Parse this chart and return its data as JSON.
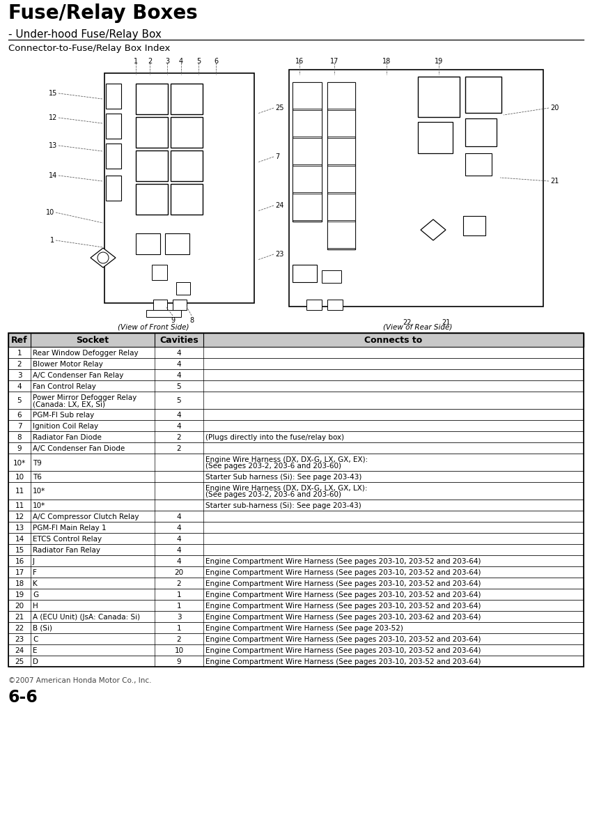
{
  "title": "Fuse/Relay Boxes",
  "subtitle": "Under-hood Fuse/Relay Box",
  "diagram_title": "Connector-to-Fuse/Relay Box Index",
  "front_label": "(View of Front Side)",
  "rear_label": "(View of Rear Side)",
  "copyright": "©2007 American Honda Motor Co., Inc.",
  "page_number": "6-6",
  "table_headers": [
    "Ref",
    "Socket",
    "Cavities",
    "Connects to"
  ],
  "table_rows": [
    [
      "1",
      "Rear Window Defogger Relay",
      "4",
      ""
    ],
    [
      "2",
      "Blower Motor Relay",
      "4",
      ""
    ],
    [
      "3",
      "A/C Condenser Fan Relay",
      "4",
      ""
    ],
    [
      "4",
      "Fan Control Relay",
      "5",
      ""
    ],
    [
      "5",
      "Power Mirror Defogger Relay\n(Canada: LX, EX, Si)",
      "5",
      ""
    ],
    [
      "6",
      "PGM-FI Sub relay",
      "4",
      ""
    ],
    [
      "7",
      "Ignition Coil Relay",
      "4",
      ""
    ],
    [
      "8",
      "Radiator Fan Diode",
      "2",
      "(Plugs directly into the fuse/relay box)"
    ],
    [
      "9",
      "A/C Condenser Fan Diode",
      "2",
      ""
    ],
    [
      "10*",
      "T9",
      "",
      "Engine Wire Harness (DX, DX-G, LX, GX, EX):\n(See pages 203-2, 203-6 and 203-60)"
    ],
    [
      "10",
      "T6",
      "",
      "Starter Sub harness (Si): See page 203-43)"
    ],
    [
      "11",
      "10*",
      "",
      "Engine Wire Harness (DX, DX-G, LX, GX, LX):\n(See pages 203-2, 203-6 and 203-60)"
    ],
    [
      "11",
      "10*",
      "",
      "Starter sub-harness (Si): See page 203-43)"
    ],
    [
      "12",
      "A/C Compressor Clutch Relay",
      "4",
      ""
    ],
    [
      "13",
      "PGM-FI Main Relay 1",
      "4",
      ""
    ],
    [
      "14",
      "ETCS Control Relay",
      "4",
      ""
    ],
    [
      "15",
      "Radiator Fan Relay",
      "4",
      ""
    ],
    [
      "16",
      "J",
      "4",
      "Engine Compartment Wire Harness (See pages 203-10, 203-52 and 203-64)"
    ],
    [
      "17",
      "F",
      "20",
      "Engine Compartment Wire Harness (See pages 203-10, 203-52 and 203-64)"
    ],
    [
      "18",
      "K",
      "2",
      "Engine Compartment Wire Harness (See pages 203-10, 203-52 and 203-64)"
    ],
    [
      "19",
      "G",
      "1",
      "Engine Compartment Wire Harness (See pages 203-10, 203-52 and 203-64)"
    ],
    [
      "20",
      "H",
      "1",
      "Engine Compartment Wire Harness (See pages 203-10, 203-52 and 203-64)"
    ],
    [
      "21",
      "A (ECU Unit) (JsA: Canada: Si)",
      "3",
      "Engine Compartment Wire Harness (See pages 203-10, 203-62 and 203-64)"
    ],
    [
      "22",
      "B (Si)",
      "1",
      "Engine Compartment Wire Harness (See page 203-52)"
    ],
    [
      "23",
      "C",
      "2",
      "Engine Compartment Wire Harness (See pages 203-10, 203-52 and 203-64)"
    ],
    [
      "24",
      "E",
      "10",
      "Engine Compartment Wire Harness (See pages 203-10, 203-52 and 203-64)"
    ],
    [
      "25",
      "D",
      "9",
      "Engine Compartment Wire Harness (See pages 203-10, 203-52 and 203-64)"
    ]
  ],
  "bg_color": "#ffffff",
  "text_color": "#000000",
  "title_fontsize": 20,
  "subtitle_fontsize": 11,
  "diagram_title_fontsize": 9.5,
  "table_header_fontsize": 9,
  "table_fontsize": 7.5
}
